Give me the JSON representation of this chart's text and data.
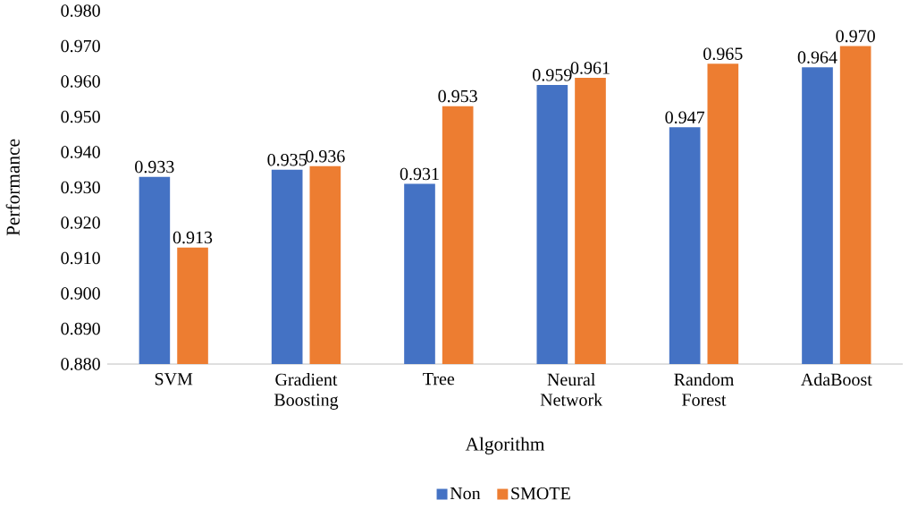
{
  "chart_data": {
    "type": "bar",
    "xlabel": "Algorithm",
    "ylabel": "Performance",
    "categories": [
      "SVM",
      "Gradient Boosting",
      "Tree",
      "Neural Network",
      "Random Forest",
      "AdaBoost"
    ],
    "series": [
      {
        "name": "Non",
        "color": "#4472c4",
        "values": [
          0.933,
          0.935,
          0.931,
          0.959,
          0.947,
          0.964
        ],
        "value_labels": [
          "0.933",
          "0.935",
          "0.931",
          "0.959",
          "0.947",
          "0.964"
        ]
      },
      {
        "name": "SMOTE",
        "color": "#ed7d31",
        "values": [
          0.913,
          0.936,
          0.953,
          0.961,
          0.965,
          0.97
        ],
        "value_labels": [
          "0.913",
          "0.936",
          "0.953",
          "0.961",
          "0.965",
          "0.970"
        ]
      }
    ],
    "ylim": [
      0.88,
      0.98
    ],
    "yticks": [
      {
        "value": 0.88,
        "label": "0.880"
      },
      {
        "value": 0.89,
        "label": "0.890"
      },
      {
        "value": 0.9,
        "label": "0.900"
      },
      {
        "value": 0.91,
        "label": "0.910"
      },
      {
        "value": 0.92,
        "label": "0.920"
      },
      {
        "value": 0.93,
        "label": "0.930"
      },
      {
        "value": 0.94,
        "label": "0.940"
      },
      {
        "value": 0.95,
        "label": "0.950"
      },
      {
        "value": 0.96,
        "label": "0.960"
      },
      {
        "value": 0.97,
        "label": "0.970"
      },
      {
        "value": 0.98,
        "label": "0.980"
      }
    ],
    "legend": "bottom"
  }
}
